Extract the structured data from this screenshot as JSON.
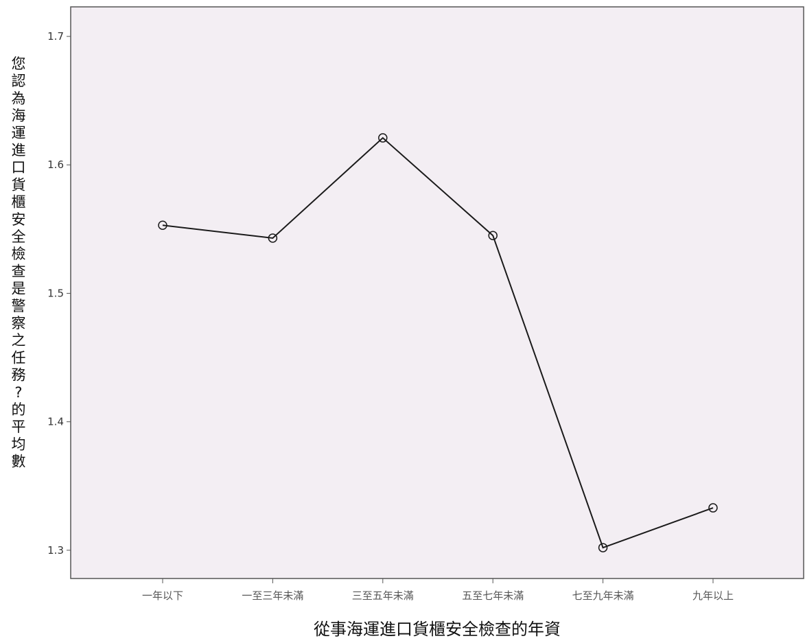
{
  "chart_data": {
    "type": "line",
    "title": "",
    "xlabel": "從事海運進口貨櫃安全檢查的年資",
    "ylabel": "您認為海運進口貨櫃安全檢查是警察之任務?的平均數",
    "categories": [
      "一年以下",
      "一至三年未滿",
      "三至五年未滿",
      "五至七年未滿",
      "七至九年未滿",
      "九年以上"
    ],
    "series": [
      {
        "values": [
          1.553,
          1.543,
          1.621,
          1.545,
          1.302,
          1.333
        ]
      }
    ],
    "ylim": [
      1.278,
      1.723
    ],
    "yticks": [
      1.3,
      1.4,
      1.5,
      1.6,
      1.7
    ],
    "ytick_labels": [
      "1.3",
      "1.4",
      "1.5",
      "1.6",
      "1.7"
    ],
    "grid": false,
    "legend": "none",
    "colors": {
      "plot_background": "#f3eef3",
      "line": "#1a1a1a",
      "marker_stroke": "#1a1a1a",
      "axis": "#555555"
    }
  }
}
